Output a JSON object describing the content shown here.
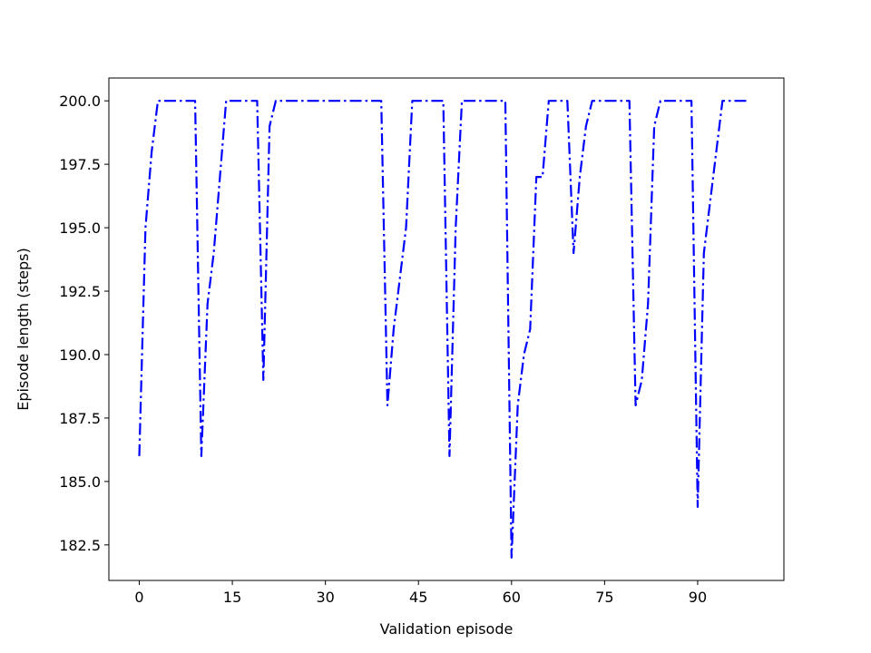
{
  "chart_data": {
    "type": "line",
    "title": "",
    "xlabel": "Validation episode",
    "ylabel": "Episode length (steps)",
    "xlim": [
      -4.9,
      103.9
    ],
    "ylim": [
      181.1,
      200.9
    ],
    "xticks": [
      0,
      15,
      30,
      45,
      60,
      75,
      90
    ],
    "xtick_labels": [
      "0",
      "15",
      "30",
      "45",
      "60",
      "75",
      "90"
    ],
    "yticks": [
      182.5,
      185.0,
      187.5,
      190.0,
      192.5,
      195.0,
      197.5,
      200.0
    ],
    "ytick_labels": [
      "182.5",
      "185.0",
      "187.5",
      "190.0",
      "192.5",
      "195.0",
      "197.5",
      "200.0"
    ],
    "grid": false,
    "line_style": "dashdot",
    "series": [
      {
        "color": "#0000ff",
        "x": [
          0,
          1,
          2,
          3,
          4,
          5,
          6,
          7,
          8,
          9,
          10,
          11,
          12,
          13,
          14,
          15,
          16,
          17,
          18,
          19,
          20,
          21,
          22,
          23,
          24,
          25,
          26,
          27,
          28,
          29,
          30,
          31,
          32,
          33,
          34,
          35,
          36,
          37,
          38,
          39,
          40,
          41,
          42,
          43,
          44,
          45,
          46,
          47,
          48,
          49,
          50,
          51,
          52,
          53,
          54,
          55,
          56,
          57,
          58,
          59,
          60,
          61,
          62,
          63,
          64,
          65,
          66,
          67,
          68,
          69,
          70,
          71,
          72,
          73,
          74,
          75,
          76,
          77,
          78,
          79,
          80,
          81,
          82,
          83,
          84,
          85,
          86,
          87,
          88,
          89,
          90,
          91,
          92,
          93,
          94,
          95,
          96,
          97,
          98
        ],
        "values": [
          186,
          195,
          198,
          200,
          200,
          200,
          200,
          200,
          200,
          200,
          186,
          192,
          194,
          197,
          200,
          200,
          200,
          200,
          200,
          200,
          189,
          199,
          200,
          200,
          200,
          200,
          200,
          200,
          200,
          200,
          200,
          200,
          200,
          200,
          200,
          200,
          200,
          200,
          200,
          200,
          188,
          191,
          193,
          195,
          200,
          200,
          200,
          200,
          200,
          200,
          186,
          195,
          200,
          200,
          200,
          200,
          200,
          200,
          200,
          200,
          182,
          188,
          190,
          191,
          197,
          197,
          200,
          200,
          200,
          200,
          194,
          197,
          199,
          200,
          200,
          200,
          200,
          200,
          200,
          200,
          188,
          189,
          192,
          199,
          200,
          200,
          200,
          200,
          200,
          200,
          184,
          194,
          196,
          198,
          200,
          200,
          200,
          200,
          200
        ]
      }
    ]
  }
}
